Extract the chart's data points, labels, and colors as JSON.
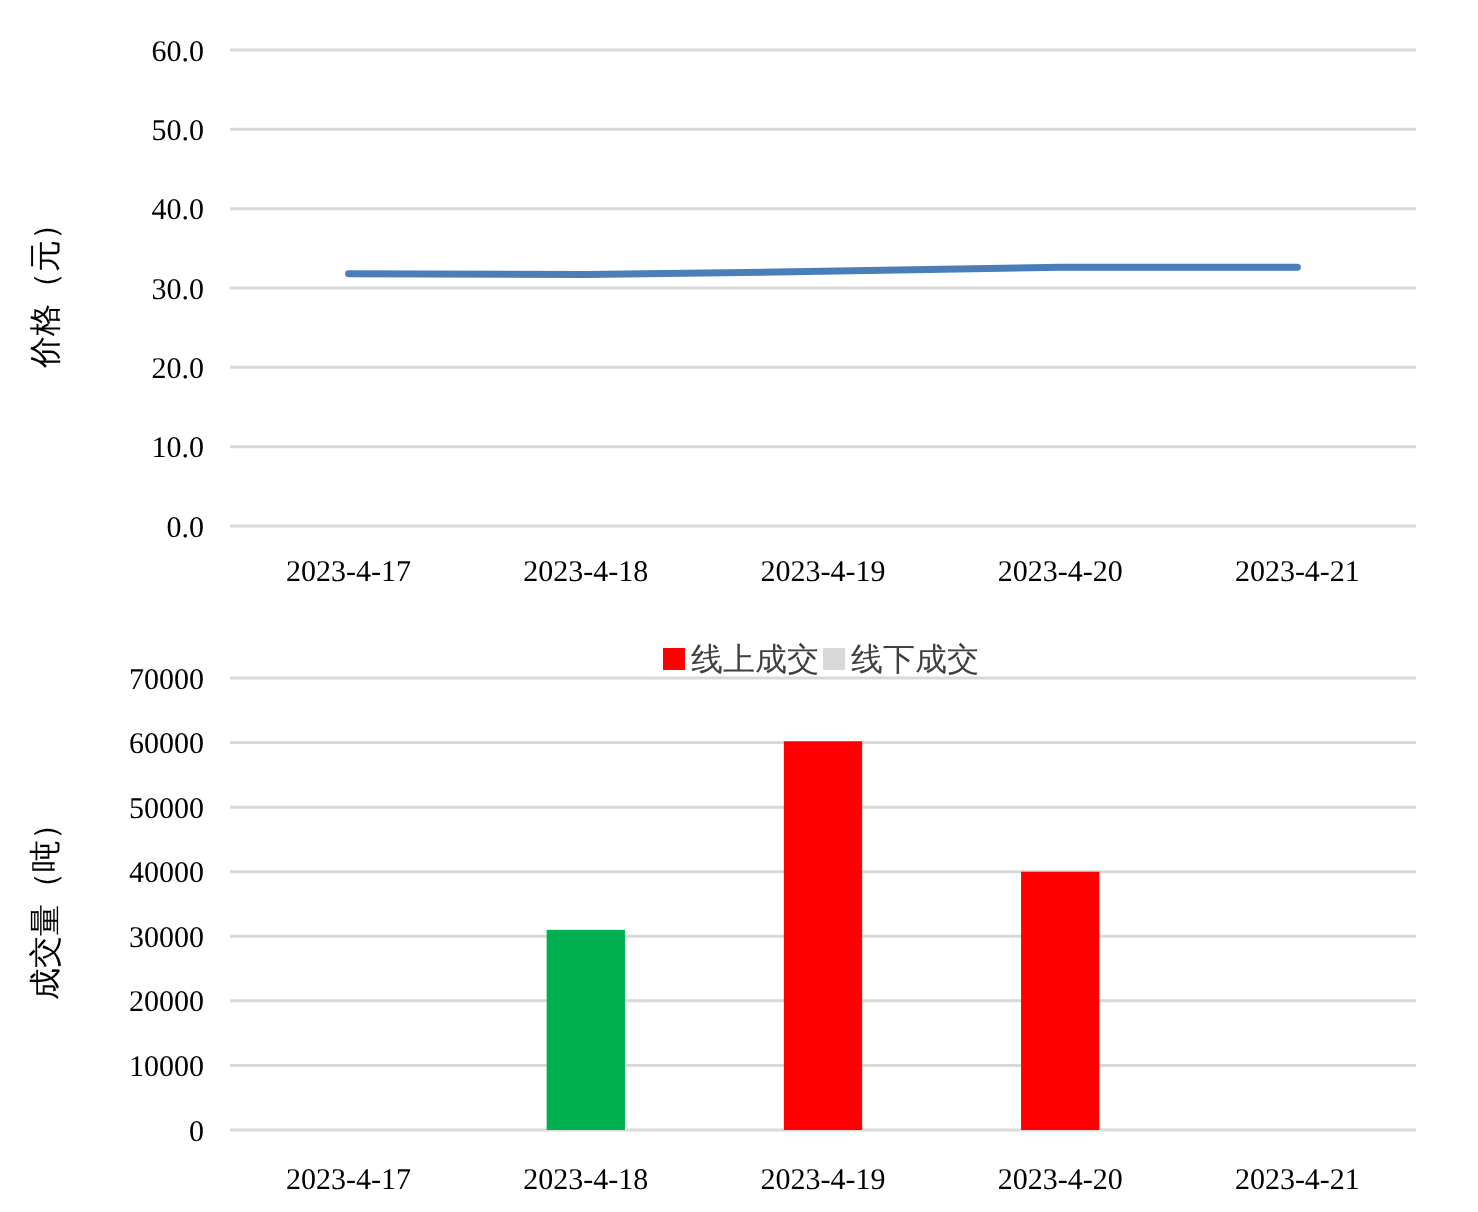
{
  "chart_data": [
    {
      "type": "line",
      "ylabel": "价格（元）",
      "categories": [
        "2023-4-17",
        "2023-4-18",
        "2023-4-19",
        "2023-4-20",
        "2023-4-21"
      ],
      "series": [
        {
          "color": "#4a7ebb",
          "values": [
            31.8,
            31.7,
            32.1,
            32.6,
            32.6
          ]
        }
      ],
      "ylim": [
        0,
        60
      ],
      "yticks": [
        {
          "value": 0,
          "label": "0.0"
        },
        {
          "value": 10,
          "label": "10.0"
        },
        {
          "value": 20,
          "label": "20.0"
        },
        {
          "value": 30,
          "label": "30.0"
        },
        {
          "value": 40,
          "label": "40.0"
        },
        {
          "value": 50,
          "label": "50.0"
        },
        {
          "value": 60,
          "label": "60.0"
        }
      ],
      "grid": "y",
      "legend": false,
      "marker": "none",
      "line_style": "solid"
    },
    {
      "type": "bar",
      "ylabel": "成交量（吨）",
      "categories": [
        "2023-4-17",
        "2023-4-18",
        "2023-4-19",
        "2023-4-20",
        "2023-4-21"
      ],
      "series": [
        {
          "name": "线上成交",
          "color": "#ff0000",
          "colors": [
            null,
            "#00b050",
            "#ff0000",
            "#ff0000",
            null
          ],
          "values": [
            null,
            31000,
            60200,
            40000,
            null
          ]
        },
        {
          "name": "线下成交",
          "color": "#d9d9d9",
          "values": [
            null,
            null,
            null,
            null,
            null
          ]
        }
      ],
      "ylim": [
        0,
        70000
      ],
      "yticks": [
        0,
        10000,
        20000,
        30000,
        40000,
        50000,
        60000,
        70000
      ],
      "grid": "y",
      "legend": "top"
    }
  ]
}
